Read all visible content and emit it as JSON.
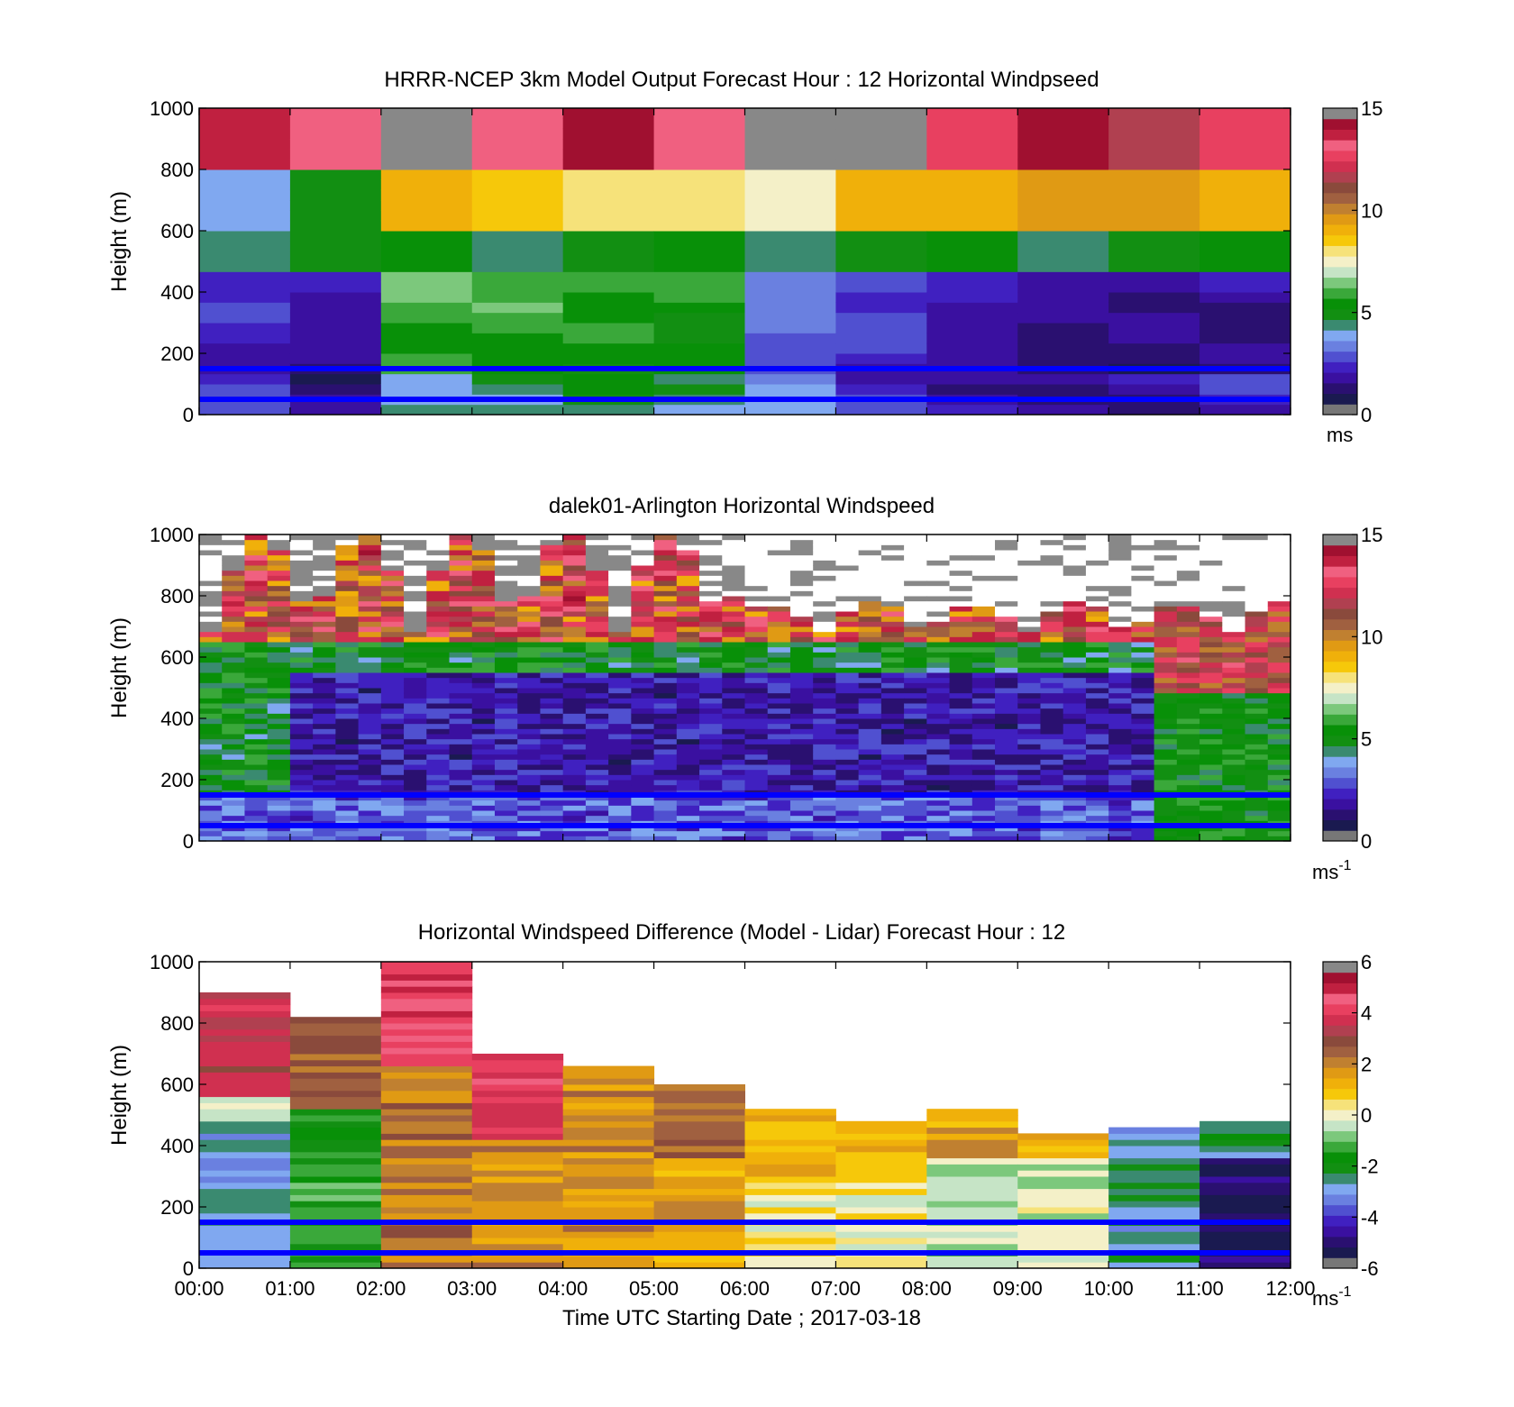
{
  "colors": {
    "cmap_speed": [
      "#777777",
      "#1a1a50",
      "#2a1070",
      "#3a10a0",
      "#4020c0",
      "#5050d0",
      "#6a80e0",
      "#80a8f0",
      "#3a8a70",
      "#128f12",
      "#089008",
      "#3aa83a",
      "#7cc87c",
      "#c6e4c6",
      "#f4f0c8",
      "#f6e27a",
      "#f6c80a",
      "#f0b00a",
      "#e09a14",
      "#c08030",
      "#a06040",
      "#8a4a3c",
      "#b04050",
      "#d03050",
      "#e84060",
      "#f06080",
      "#c02040",
      "#a01030",
      "#888888"
    ],
    "overlay_line": "#0000ff",
    "missing": "#888888",
    "nodata": "#ffffff"
  },
  "chart_data": [
    {
      "type": "heatmap",
      "title": "HRRR-NCEP 3km Model Output   Forecast Hour : 12 Horizontal Windpseed",
      "ylabel": "Height (m)",
      "xlabel": "",
      "xlim": [
        0,
        12
      ],
      "ylim": [
        0,
        1000
      ],
      "yticks": [
        "0",
        "200",
        "400",
        "600",
        "800",
        "1000"
      ],
      "xticks": [],
      "clim": [
        0,
        15
      ],
      "cticks": [
        "0",
        "5",
        "10",
        "15"
      ],
      "unit": "ms",
      "unit_sup": "",
      "hlines": [
        50,
        150
      ],
      "variant": "model"
    },
    {
      "type": "heatmap",
      "title": "dalek01-Arlington  Horizontal Windspeed",
      "ylabel": "Height (m)",
      "xlabel": "",
      "xlim": [
        0,
        12
      ],
      "ylim": [
        0,
        1000
      ],
      "yticks": [
        "0",
        "200",
        "400",
        "600",
        "800",
        "1000"
      ],
      "xticks": [],
      "clim": [
        0,
        15
      ],
      "cticks": [
        "0",
        "5",
        "10",
        "15"
      ],
      "unit": "ms",
      "unit_sup": "-1",
      "hlines": [
        50,
        150
      ],
      "variant": "lidar"
    },
    {
      "type": "heatmap",
      "title": "Horizontal Windspeed Difference (Model - Lidar) Forecast Hour : 12",
      "ylabel": "Height (m)",
      "xlabel": "Time UTC  Starting Date ; 2017-03-18",
      "xlim": [
        0,
        12
      ],
      "ylim": [
        0,
        1000
      ],
      "yticks": [
        "0",
        "200",
        "400",
        "600",
        "800",
        "1000"
      ],
      "xticks": [
        "00:00",
        "01:00",
        "02:00",
        "03:00",
        "04:00",
        "05:00",
        "06:00",
        "07:00",
        "08:00",
        "09:00",
        "10:00",
        "11:00",
        "12:00"
      ],
      "clim": [
        -6,
        6
      ],
      "cticks": [
        "-6",
        "-4",
        "-2",
        "0",
        "2",
        "4",
        "6"
      ],
      "unit": "ms",
      "unit_sup": "-1",
      "hlines": [
        50,
        150
      ],
      "variant": "diff",
      "column_tops": [
        900,
        820,
        1000,
        690,
        660,
        590,
        510,
        480,
        510,
        440,
        450,
        480
      ]
    }
  ]
}
